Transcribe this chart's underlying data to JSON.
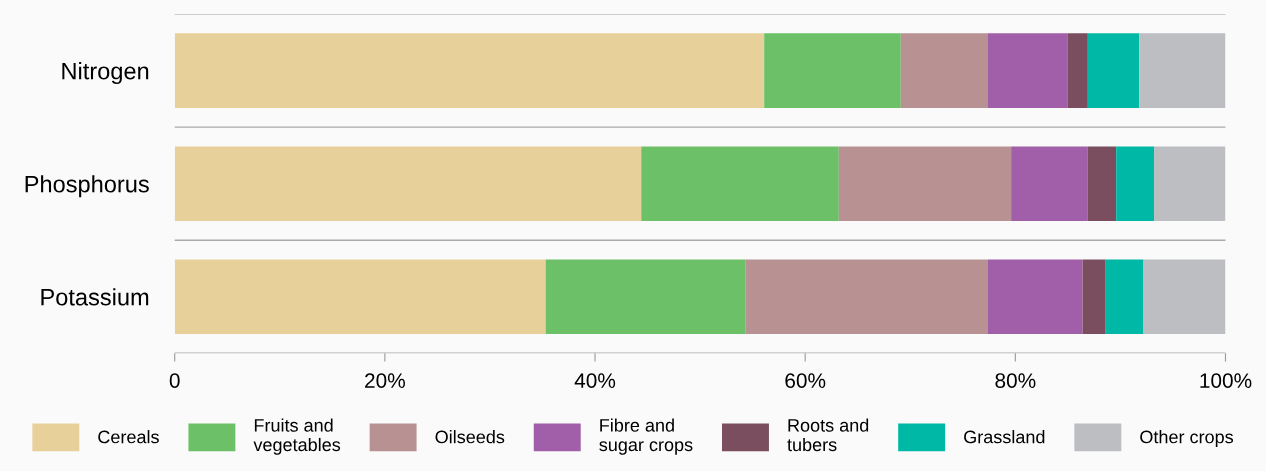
{
  "chart_data": {
    "type": "bar",
    "orientation": "horizontal",
    "stacked": true,
    "categories": [
      "Nitrogen",
      "Phosphorus",
      "Potassium"
    ],
    "series": [
      {
        "name": "Cereals",
        "color": "#e8d09a",
        "values": [
          56.1,
          44.4,
          35.3
        ]
      },
      {
        "name": "Fruits and\nvegetables",
        "color": "#6cc067",
        "values": [
          13.0,
          18.8,
          19.0
        ]
      },
      {
        "name": "Oilseeds",
        "color": "#b89292",
        "values": [
          8.3,
          16.4,
          23.1
        ]
      },
      {
        "name": "Fibre and\nsugar crops",
        "color": "#a05fa8",
        "values": [
          7.6,
          7.3,
          9.0
        ]
      },
      {
        "name": "Roots and\ntubers",
        "color": "#7a4e5e",
        "values": [
          1.9,
          2.7,
          2.2
        ]
      },
      {
        "name": "Grassland",
        "color": "#00b8a6",
        "values": [
          4.9,
          3.6,
          3.6
        ]
      },
      {
        "name": "Other crops",
        "color": "#bdbec2",
        "values": [
          8.2,
          6.8,
          7.8
        ]
      }
    ],
    "xlim": [
      0,
      100
    ],
    "xticks": [
      0,
      {
        "value": 20,
        "label": "20%"
      },
      {
        "value": 40,
        "label": "40%"
      },
      {
        "value": 60,
        "label": "60%"
      },
      {
        "value": 80,
        "label": "80%"
      },
      {
        "value": 100,
        "label": "100%"
      }
    ],
    "grid": "y",
    "legend": "bottom"
  }
}
